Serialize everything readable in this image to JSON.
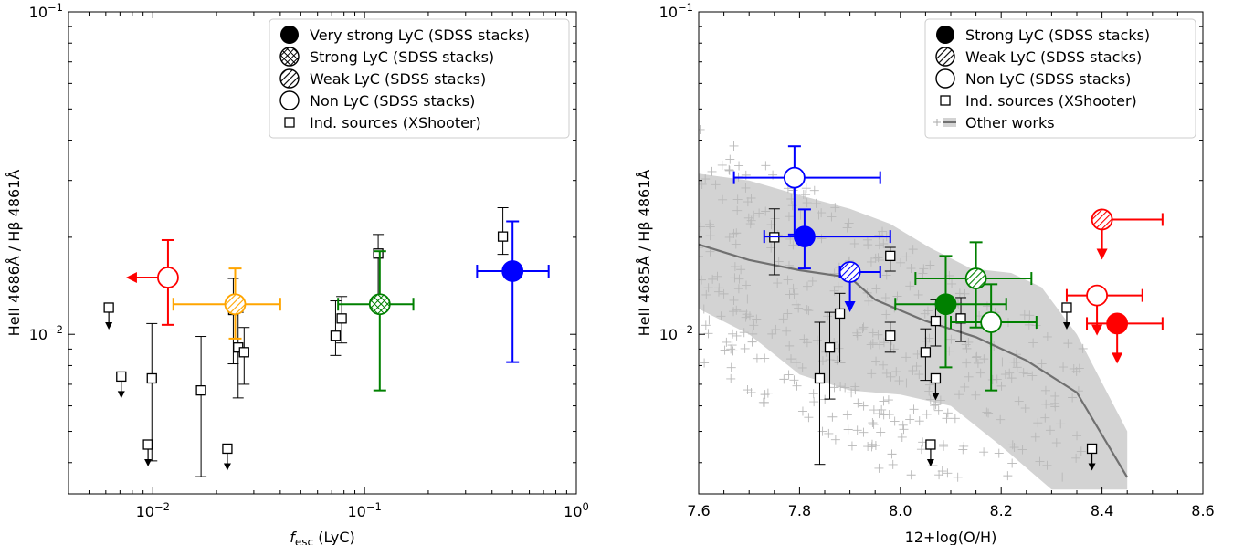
{
  "chart_data": [
    {
      "type": "scatter",
      "xlabel": "f_esc (LyC)",
      "xlabel_main": "f",
      "xlabel_sub": "esc",
      "xlabel_rest": " (LyC)",
      "ylabel": "HeII 4686Å / Hβ 4861Å",
      "xscale": "log",
      "yscale": "log",
      "xlim": [
        0.004,
        1.0
      ],
      "ylim": [
        0.0032,
        0.1
      ],
      "x_ticks": [
        {
          "v": 0.01,
          "b": "10",
          "e": "−2"
        },
        {
          "v": 0.1,
          "b": "10",
          "e": "−1"
        },
        {
          "v": 1.0,
          "b": "10",
          "e": "0"
        }
      ],
      "y_ticks": [
        {
          "v": 0.01,
          "b": "10",
          "e": "−2"
        },
        {
          "v": 0.1,
          "b": "10",
          "e": "−1"
        }
      ],
      "legend": {
        "position": "top-right",
        "entries": [
          {
            "label": "Very strong LyC (SDSS stacks)",
            "marker": "filled-circle"
          },
          {
            "label": "Strong LyC (SDSS stacks)",
            "marker": "crosshatch-circle"
          },
          {
            "label": "Weak LyC (SDSS stacks)",
            "marker": "hatched-circle"
          },
          {
            "label": "Non LyC (SDSS stacks)",
            "marker": "open-circle"
          },
          {
            "label": "Ind. sources (XShooter)",
            "marker": "open-square"
          }
        ]
      },
      "stacks": [
        {
          "color": "#ff0000",
          "fill": "open",
          "x": 0.0118,
          "y": 0.015,
          "yerr": [
            0.0107,
            0.0196
          ],
          "x_upper_limit": true
        },
        {
          "color": "#ffa500",
          "fill": "hatched",
          "x": 0.0245,
          "y": 0.0124,
          "xerr": [
            0.0125,
            0.04
          ],
          "yerr": [
            0.0097,
            0.016
          ]
        },
        {
          "color": "#008000",
          "fill": "crosshatch",
          "x": 0.118,
          "y": 0.0124,
          "xerr": [
            0.075,
            0.17
          ],
          "yerr": [
            0.0067,
            0.0181
          ]
        },
        {
          "color": "#0000ff",
          "fill": "filled",
          "x": 0.5,
          "y": 0.0157,
          "xerr": [
            0.34,
            0.74
          ],
          "yerr": [
            0.0082,
            0.0224
          ]
        }
      ],
      "individual": [
        {
          "x": 0.0062,
          "y": 0.0121,
          "upper_limit": true
        },
        {
          "x": 0.0071,
          "y": 0.0074,
          "upper_limit": true
        },
        {
          "x": 0.0095,
          "y": 0.00455,
          "upper_limit": true
        },
        {
          "x": 0.0099,
          "y": 0.0073,
          "yerr": [
            0.00405,
            0.0108
          ]
        },
        {
          "x": 0.0169,
          "y": 0.0067,
          "yerr": [
            0.00362,
            0.00985
          ]
        },
        {
          "x": 0.0225,
          "y": 0.00442,
          "upper_limit": true
        },
        {
          "x": 0.024,
          "y": 0.0119,
          "yerr": [
            0.0081,
            0.0149
          ]
        },
        {
          "x": 0.0253,
          "y": 0.0091,
          "yerr": [
            0.00635,
            0.0117
          ]
        },
        {
          "x": 0.027,
          "y": 0.0088,
          "yerr": [
            0.007,
            0.0105
          ]
        },
        {
          "x": 0.073,
          "y": 0.0099,
          "yerr": [
            0.0086,
            0.0127
          ]
        },
        {
          "x": 0.078,
          "y": 0.0112,
          "yerr": [
            0.0094,
            0.0131
          ]
        },
        {
          "x": 0.116,
          "y": 0.0178,
          "yerr": [
            0.0125,
            0.0204
          ]
        },
        {
          "x": 0.45,
          "y": 0.0201,
          "yerr": [
            0.0177,
            0.0247
          ]
        }
      ]
    },
    {
      "type": "scatter",
      "xlabel": "12+log(O/H)",
      "ylabel": "HeII 4685Å / Hβ 4861Å",
      "xscale": "linear",
      "yscale": "log",
      "xlim": [
        7.6,
        8.6
      ],
      "ylim": [
        0.0032,
        0.1
      ],
      "x_ticks": [
        {
          "v": 7.6,
          "t": "7.6"
        },
        {
          "v": 7.8,
          "t": "7.8"
        },
        {
          "v": 8.0,
          "t": "8.0"
        },
        {
          "v": 8.2,
          "t": "8.2"
        },
        {
          "v": 8.4,
          "t": "8.4"
        },
        {
          "v": 8.6,
          "t": "8.6"
        }
      ],
      "y_ticks": [
        {
          "v": 0.01,
          "b": "10",
          "e": "−2"
        },
        {
          "v": 0.1,
          "b": "10",
          "e": "−1"
        }
      ],
      "legend": {
        "position": "top-right",
        "entries": [
          {
            "label": "Strong LyC (SDSS stacks)",
            "marker": "filled-circle"
          },
          {
            "label": "Weak LyC (SDSS stacks)",
            "marker": "hatched-circle"
          },
          {
            "label": "Non LyC (SDSS stacks)",
            "marker": "open-circle"
          },
          {
            "label": "Ind. sources (XShooter)",
            "marker": "open-square"
          },
          {
            "label": "Other works",
            "marker": "plus-and-band"
          }
        ]
      },
      "stacks": [
        {
          "color": "#0000ff",
          "fill": "open",
          "x": 7.79,
          "y": 0.0306,
          "xerr": [
            7.67,
            7.96
          ],
          "yerr": [
            0.0204,
            0.0383
          ]
        },
        {
          "color": "#0000ff",
          "fill": "filled",
          "x": 7.81,
          "y": 0.0201,
          "xerr": [
            7.73,
            7.98
          ],
          "yerr": [
            0.016,
            0.0244
          ]
        },
        {
          "color": "#0000ff",
          "fill": "hatched",
          "x": 7.9,
          "y": 0.0156,
          "xerr": [
            7.88,
            7.96
          ],
          "y_upper_limit": true
        },
        {
          "color": "#008000",
          "fill": "filled",
          "x": 8.09,
          "y": 0.0124,
          "xerr": [
            7.99,
            8.21
          ],
          "yerr": [
            0.0079,
            0.0175
          ]
        },
        {
          "color": "#008000",
          "fill": "hatched",
          "x": 8.15,
          "y": 0.0149,
          "xerr": [
            8.03,
            8.26
          ],
          "yerr": [
            0.0105,
            0.0193
          ]
        },
        {
          "color": "#008000",
          "fill": "open",
          "x": 8.18,
          "y": 0.0109,
          "xerr": [
            8.1,
            8.27
          ],
          "yerr": [
            0.0067,
            0.0143
          ]
        },
        {
          "color": "#ff0000",
          "fill": "hatched",
          "x": 8.4,
          "y": 0.0227,
          "xerr": [
            8.4,
            8.52
          ],
          "y_upper_limit": true
        },
        {
          "color": "#ff0000",
          "fill": "open",
          "x": 8.39,
          "y": 0.0132,
          "xerr": [
            8.33,
            8.48
          ],
          "y_upper_limit": true
        },
        {
          "color": "#ff0000",
          "fill": "filled",
          "x": 8.43,
          "y": 0.0108,
          "xerr": [
            8.37,
            8.52
          ],
          "y_upper_limit": true
        }
      ],
      "individual": [
        {
          "x": 7.75,
          "y": 0.02,
          "yerr": [
            0.0153,
            0.0245
          ]
        },
        {
          "x": 7.84,
          "y": 0.0073,
          "yerr": [
            0.00395,
            0.0109
          ]
        },
        {
          "x": 7.86,
          "y": 0.0091,
          "yerr": [
            0.0063,
            0.0117
          ]
        },
        {
          "x": 7.88,
          "y": 0.0116,
          "yerr": [
            0.0082,
            0.0134
          ]
        },
        {
          "x": 7.98,
          "y": 0.0175,
          "yerr": [
            0.0157,
            0.0186
          ]
        },
        {
          "x": 7.98,
          "y": 0.0099,
          "yerr": [
            0.0088,
            0.0109
          ]
        },
        {
          "x": 8.05,
          "y": 0.0088,
          "yerr": [
            0.0072,
            0.0104
          ]
        },
        {
          "x": 8.07,
          "y": 0.0073,
          "upper_limit": true
        },
        {
          "x": 8.06,
          "y": 0.00455,
          "upper_limit": true
        },
        {
          "x": 8.07,
          "y": 0.011,
          "yerr": [
            0.0092,
            0.0128
          ]
        },
        {
          "x": 8.12,
          "y": 0.0112,
          "yerr": [
            0.0095,
            0.013
          ]
        },
        {
          "x": 8.33,
          "y": 0.0121,
          "upper_limit": true
        },
        {
          "x": 8.38,
          "y": 0.00442,
          "upper_limit": true
        }
      ],
      "other_works_median": [
        {
          "x": 7.6,
          "y": 0.019
        },
        {
          "x": 7.7,
          "y": 0.017
        },
        {
          "x": 7.8,
          "y": 0.0158
        },
        {
          "x": 7.9,
          "y": 0.015
        },
        {
          "x": 7.95,
          "y": 0.0128
        },
        {
          "x": 8.05,
          "y": 0.011
        },
        {
          "x": 8.15,
          "y": 0.0098
        },
        {
          "x": 8.25,
          "y": 0.0083
        },
        {
          "x": 8.35,
          "y": 0.0066
        },
        {
          "x": 8.45,
          "y": 0.0036
        }
      ],
      "other_works_band_upper": [
        {
          "x": 7.6,
          "y": 0.0315
        },
        {
          "x": 7.7,
          "y": 0.03
        },
        {
          "x": 7.8,
          "y": 0.027
        },
        {
          "x": 7.9,
          "y": 0.0245
        },
        {
          "x": 7.98,
          "y": 0.022
        },
        {
          "x": 8.06,
          "y": 0.0185
        },
        {
          "x": 8.14,
          "y": 0.016
        },
        {
          "x": 8.22,
          "y": 0.0155
        },
        {
          "x": 8.28,
          "y": 0.014
        },
        {
          "x": 8.35,
          "y": 0.01
        },
        {
          "x": 8.45,
          "y": 0.005
        }
      ],
      "other_works_band_lower": [
        {
          "x": 8.45,
          "y": 0.0033
        },
        {
          "x": 8.3,
          "y": 0.0033
        },
        {
          "x": 8.2,
          "y": 0.0045
        },
        {
          "x": 8.1,
          "y": 0.006
        },
        {
          "x": 8.0,
          "y": 0.0065
        },
        {
          "x": 7.9,
          "y": 0.0067
        },
        {
          "x": 7.8,
          "y": 0.0075
        },
        {
          "x": 7.7,
          "y": 0.01
        },
        {
          "x": 7.6,
          "y": 0.012
        }
      ]
    }
  ]
}
